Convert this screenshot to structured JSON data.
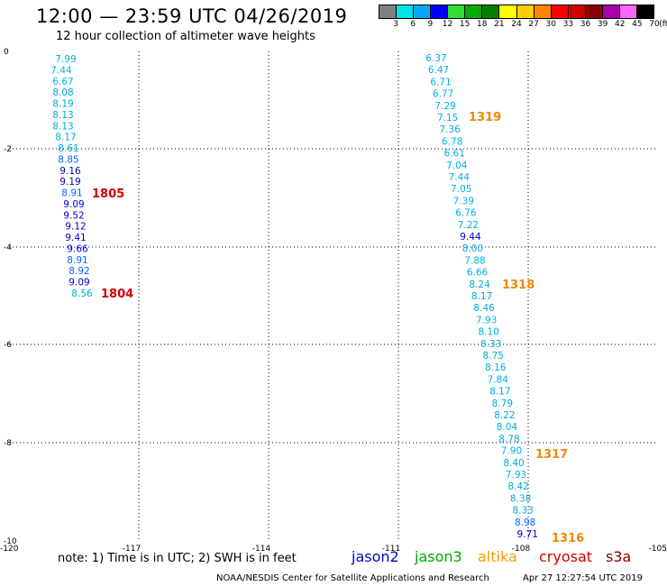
{
  "header": {
    "title": "12:00 — 23:59 UTC 04/26/2019",
    "subtitle": "12 hour collection of altimeter wave heights"
  },
  "colorbar": {
    "unit": "(ft)",
    "labels": [
      "3",
      "6",
      "9",
      "12",
      "15",
      "18",
      "21",
      "24",
      "27",
      "30",
      "33",
      "36",
      "39",
      "42",
      "45",
      "70"
    ],
    "colors": [
      "#808080",
      "#00e5e5",
      "#00a8ff",
      "#0000ff",
      "#33dd33",
      "#00aa00",
      "#008000",
      "#ffff00",
      "#ffcc00",
      "#ff8800",
      "#ff0000",
      "#cc0000",
      "#880000",
      "#aa00aa",
      "#ff66ff",
      "#000000"
    ]
  },
  "axes": {
    "x_ticks": [
      "-120",
      "-117",
      "-114",
      "-111",
      "-108",
      "-105"
    ],
    "y_ticks": [
      "0",
      "-2",
      "-4",
      "-6",
      "-8",
      "-10"
    ]
  },
  "tracks": [
    {
      "label": "1805",
      "satellite": "cryosat",
      "color": "#cc0000"
    },
    {
      "label": "1804",
      "satellite": "cryosat",
      "color": "#cc0000"
    },
    {
      "label": "1319",
      "satellite": "altika",
      "color": "#ee8800"
    },
    {
      "label": "1318",
      "satellite": "altika",
      "color": "#ee8800"
    },
    {
      "label": "1317",
      "satellite": "altika",
      "color": "#ee8800"
    },
    {
      "label": "1316",
      "satellite": "altika",
      "color": "#ee8800"
    }
  ],
  "track1_values": [
    "7.99",
    "7.44",
    "6.67",
    "8.08",
    "8.19",
    "8.13",
    "8.13",
    "8.17",
    "8.61",
    "8.85",
    "9.16",
    "9.19",
    "8.91",
    "9.09",
    "9.52",
    "9.12",
    "9.41",
    "9.66",
    "8.91",
    "8.92",
    "9.09",
    "8.56"
  ],
  "track2_values": [
    "6.37",
    "6.47",
    "6.71",
    "6.77",
    "7.29",
    "7.15",
    "7.36",
    "6.78",
    "6.61",
    "7.04",
    "7.44",
    "7.05",
    "7.39",
    "6.76",
    "7.22",
    "9.44",
    "8.00",
    "7.88",
    "6.66",
    "8.24",
    "8.17",
    "8.46",
    "7.93",
    "8.10",
    "8.33",
    "8.75",
    "8.16",
    "7.84",
    "8.17",
    "8.79",
    "8.22",
    "8.04",
    "8.78",
    "7.90",
    "8.40",
    "7.93",
    "8.42",
    "8.38",
    "8.33",
    "8.98",
    "9.71"
  ],
  "note": "note:  1) Time is in UTC; 2) SWH is in feet",
  "legend": [
    {
      "name": "jason2",
      "color": "#0000cc"
    },
    {
      "name": "jason3",
      "color": "#00aa00"
    },
    {
      "name": "altika",
      "color": "#ff9900"
    },
    {
      "name": "cryosat",
      "color": "#cc0000"
    },
    {
      "name": "s3a",
      "color": "#880000"
    }
  ],
  "footer": {
    "credit": "NOAA/NESDIS Center for Satellite Applications and Research",
    "timestamp": "Apr 27 12:27:54 UTC 2019"
  }
}
